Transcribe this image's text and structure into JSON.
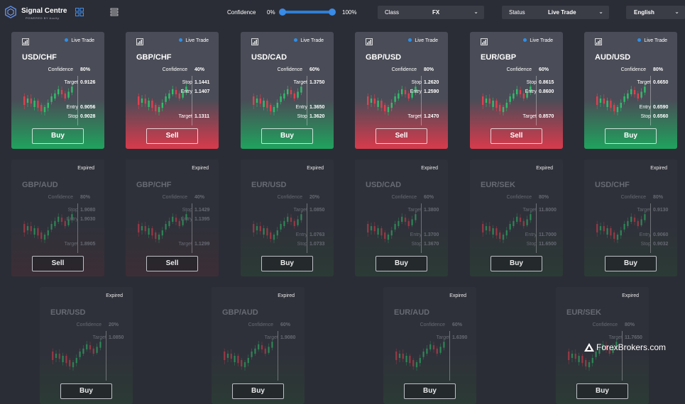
{
  "header": {
    "logo_title": "Signal Centre",
    "logo_sub": "POWERED BY Acuity",
    "confidence_label": "Confidence",
    "confidence_min": "0%",
    "confidence_max": "100%",
    "class_label": "Class",
    "class_value": "FX",
    "status_label": "Status",
    "status_value": "Live Trade",
    "language_value": "English"
  },
  "cards_row1": [
    {
      "status": "Live Trade",
      "pair": "USD/CHF",
      "confidence_label": "Confidence",
      "confidence": "80%",
      "r1l": "Target",
      "r1v": "0.9126",
      "r2l": "",
      "r2v": "",
      "r3l": "Entry",
      "r3v": "0.9056",
      "r4l": "Stop",
      "r4v": "0.9028",
      "action": "Buy"
    },
    {
      "status": "Live Trade",
      "pair": "GBP/CHF",
      "confidence_label": "Confidence",
      "confidence": "40%",
      "r1l": "Stop",
      "r1v": "1.1441",
      "r2l": "Entry",
      "r2v": "1.1407",
      "r3l": "",
      "r3v": "",
      "r4l": "Target",
      "r4v": "1.1311",
      "action": "Sell"
    },
    {
      "status": "Live Trade",
      "pair": "USD/CAD",
      "confidence_label": "Confidence",
      "confidence": "60%",
      "r1l": "Target",
      "r1v": "1.3750",
      "r2l": "",
      "r2v": "",
      "r3l": "Entry",
      "r3v": "1.3650",
      "r4l": "Stop",
      "r4v": "1.3620",
      "action": "Buy"
    },
    {
      "status": "Live Trade",
      "pair": "GBP/USD",
      "confidence_label": "Confidence",
      "confidence": "80%",
      "r1l": "Stop",
      "r1v": "1.2620",
      "r2l": "Entry",
      "r2v": "1.2590",
      "r3l": "",
      "r3v": "",
      "r4l": "Target",
      "r4v": "1.2470",
      "action": "Sell"
    },
    {
      "status": "Live Trade",
      "pair": "EUR/GBP",
      "confidence_label": "Confidence",
      "confidence": "60%",
      "r1l": "Stop",
      "r1v": "0.8615",
      "r2l": "Entry",
      "r2v": "0.8600",
      "r3l": "",
      "r3v": "",
      "r4l": "Target",
      "r4v": "0.8570",
      "action": "Sell"
    },
    {
      "status": "Live Trade",
      "pair": "AUD/USD",
      "confidence_label": "Confidence",
      "confidence": "80%",
      "r1l": "Target",
      "r1v": "0.6650",
      "r2l": "",
      "r2v": "",
      "r3l": "Entry",
      "r3v": "0.6590",
      "r4l": "Stop",
      "r4v": "0.6560",
      "action": "Buy"
    }
  ],
  "cards_row2": [
    {
      "status": "Expired",
      "pair": "GBP/AUD",
      "confidence_label": "Confidence",
      "confidence": "80%",
      "r1l": "Stop",
      "r1v": "1.9080",
      "r2l": "Entry",
      "r2v": "1.9030",
      "r3l": "",
      "r3v": "",
      "r4l": "Target",
      "r4v": "1.8905",
      "action": "Sell"
    },
    {
      "status": "Expired",
      "pair": "GBP/CHF",
      "confidence_label": "Confidence",
      "confidence": "40%",
      "r1l": "Stop",
      "r1v": "1.1429",
      "r2l": "Entry",
      "r2v": "1.1395",
      "r3l": "",
      "r3v": "",
      "r4l": "Target",
      "r4v": "1.1299",
      "action": "Sell"
    },
    {
      "status": "Expired",
      "pair": "EUR/USD",
      "confidence_label": "Confidence",
      "confidence": "20%",
      "r1l": "Target",
      "r1v": "1.0850",
      "r2l": "",
      "r2v": "",
      "r3l": "Entry",
      "r3v": "1.0763",
      "r4l": "Stop",
      "r4v": "1.0733",
      "action": "Buy"
    },
    {
      "status": "Expired",
      "pair": "USD/CAD",
      "confidence_label": "Confidence",
      "confidence": "60%",
      "r1l": "Target",
      "r1v": "1.3800",
      "r2l": "",
      "r2v": "",
      "r3l": "Entry",
      "r3v": "1.3700",
      "r4l": "Stop",
      "r4v": "1.3670",
      "action": "Buy"
    },
    {
      "status": "Expired",
      "pair": "EUR/SEK",
      "confidence_label": "Confidence",
      "confidence": "80%",
      "r1l": "Target",
      "r1v": "11.8000",
      "r2l": "",
      "r2v": "",
      "r3l": "Entry",
      "r3v": "11.7000",
      "r4l": "Stop",
      "r4v": "11.6500",
      "action": "Buy"
    },
    {
      "status": "Expired",
      "pair": "USD/CHF",
      "confidence_label": "Confidence",
      "confidence": "80%",
      "r1l": "Target",
      "r1v": "0.9130",
      "r2l": "",
      "r2v": "",
      "r3l": "Entry",
      "r3v": "0.9060",
      "r4l": "Stop",
      "r4v": "0.9032",
      "action": "Buy"
    }
  ],
  "cards_row3": [
    {
      "status": "Expired",
      "pair": "EUR/USD",
      "confidence_label": "Confidence",
      "confidence": "20%",
      "r1l": "Target",
      "r1v": "1.0850",
      "action": "Buy"
    },
    {
      "status": "Expired",
      "pair": "GBP/AUD",
      "confidence_label": "Confidence",
      "confidence": "60%",
      "r1l": "Target",
      "r1v": "1.9080",
      "action": "Buy"
    },
    {
      "status": "Expired",
      "pair": "EUR/AUD",
      "confidence_label": "Confidence",
      "confidence": "60%",
      "r1l": "Target",
      "r1v": "1.6390",
      "action": "Buy"
    },
    {
      "status": "Expired",
      "pair": "EUR/SEK",
      "confidence_label": "Confidence",
      "confidence": "80%",
      "r1l": "Target",
      "r1v": "11.7650",
      "action": "Buy"
    }
  ],
  "watermark": {
    "text": "ForexBrokers.com"
  }
}
